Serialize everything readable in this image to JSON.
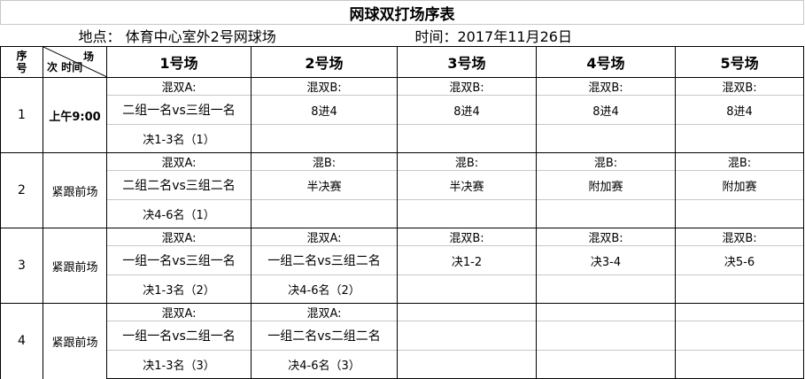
{
  "title": "网球双打场序表",
  "location": "地点：   体育中心室外2号网球场",
  "date": "时间：2017年11月26日",
  "header": {
    "seq": "序号",
    "diag_top": "场",
    "diag_bottom": "次 时间",
    "courts": [
      "1号场",
      "2号场",
      "3号场",
      "4号场",
      "5号场"
    ]
  },
  "groups": [
    {
      "seq": "1",
      "time": "上午9:00",
      "time_bold": true,
      "cells": [
        [
          "混双A:",
          "二组一名vs三组一名",
          "决1-3名（1）"
        ],
        [
          "混双B:",
          "8进4",
          ""
        ],
        [
          "混双B:",
          "8进4",
          ""
        ],
        [
          "混双B:",
          "8进4",
          ""
        ],
        [
          "混双B:",
          "8进4",
          ""
        ]
      ]
    },
    {
      "seq": "2",
      "time": "紧跟前场",
      "cells": [
        [
          "混双A:",
          "二组二名vs三组二名",
          "决4-6名（1）"
        ],
        [
          "混B:",
          "半决赛",
          ""
        ],
        [
          "混B:",
          "半决赛",
          ""
        ],
        [
          "混B:",
          "附加赛",
          ""
        ],
        [
          "混B:",
          "附加赛",
          ""
        ]
      ]
    },
    {
      "seq": "3",
      "time": "紧跟前场",
      "cells": [
        [
          "混双A:",
          "一组一名vs三组一名",
          "决1-3名（2）"
        ],
        [
          "混双A:",
          "一组二名vs三组二名",
          "决4-6名（2）"
        ],
        [
          "混双B:",
          "决1-2",
          ""
        ],
        [
          "混双B:",
          "决3-4",
          ""
        ],
        [
          "混双B:",
          "决5-6",
          ""
        ]
      ]
    },
    {
      "seq": "4",
      "time": "紧跟前场",
      "cells": [
        [
          "混双A:",
          "一组一名vs二组一名",
          "决1-3名（3）"
        ],
        [
          "混双A:",
          "一组二名vs二组二名",
          "决4-6名（3）"
        ],
        [
          "",
          "",
          ""
        ],
        [
          "",
          "",
          ""
        ],
        [
          "",
          "",
          ""
        ]
      ]
    }
  ]
}
